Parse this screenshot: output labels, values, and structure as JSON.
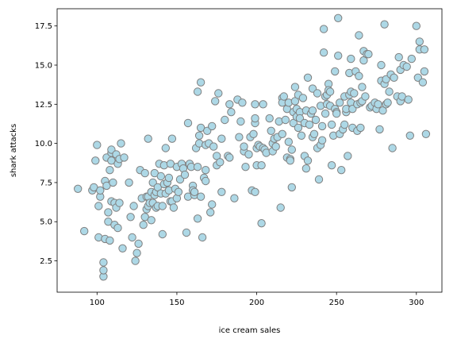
{
  "chart_data": {
    "type": "scatter",
    "title": "",
    "xlabel": "ice cream sales",
    "ylabel": "shark attacks",
    "xlim": [
      75,
      316
    ],
    "ylim": [
      0.5,
      18.6
    ],
    "xticks": [
      100,
      150,
      200,
      250,
      300
    ],
    "yticks": [
      2.5,
      5.0,
      7.5,
      10.0,
      12.5,
      15.0,
      17.5
    ],
    "xtick_labels": [
      "100",
      "150",
      "200",
      "250",
      "300"
    ],
    "ytick_labels": [
      "2.5",
      "5.0",
      "7.5",
      "10.0",
      "12.5",
      "15.0",
      "17.5"
    ],
    "grid": false,
    "marker_fill": "#add8e6",
    "marker_edge": "#808080",
    "points": [
      [
        88,
        7.1
      ],
      [
        92,
        4.4
      ],
      [
        97,
        7.0
      ],
      [
        98,
        7.2
      ],
      [
        99,
        8.9
      ],
      [
        100,
        9.9
      ],
      [
        101,
        6.0
      ],
      [
        101,
        4.0
      ],
      [
        102,
        6.6
      ],
      [
        102,
        7.0
      ],
      [
        104,
        2.4
      ],
      [
        104,
        1.5
      ],
      [
        104,
        1.9
      ],
      [
        105,
        3.9
      ],
      [
        105,
        7.6
      ],
      [
        106,
        7.3
      ],
      [
        106,
        9.1
      ],
      [
        107,
        5.0
      ],
      [
        107,
        5.6
      ],
      [
        108,
        3.8
      ],
      [
        108,
        8.3
      ],
      [
        109,
        9.4
      ],
      [
        109,
        9.6
      ],
      [
        109,
        8.9
      ],
      [
        109,
        6.3
      ],
      [
        110,
        7.5
      ],
      [
        111,
        4.8
      ],
      [
        111,
        6.2
      ],
      [
        112,
        9.3
      ],
      [
        112,
        5.9
      ],
      [
        113,
        8.7
      ],
      [
        113,
        4.6
      ],
      [
        114,
        9.0
      ],
      [
        114,
        6.2
      ],
      [
        115,
        10.0
      ],
      [
        116,
        3.3
      ],
      [
        117,
        9.1
      ],
      [
        120,
        7.5
      ],
      [
        121,
        5.3
      ],
      [
        122,
        4.0
      ],
      [
        123,
        6.0
      ],
      [
        124,
        2.5
      ],
      [
        125,
        3.0
      ],
      [
        126,
        3.6
      ],
      [
        127,
        8.3
      ],
      [
        128,
        6.5
      ],
      [
        129,
        4.8
      ],
      [
        130,
        5.3
      ],
      [
        130,
        8.1
      ],
      [
        131,
        6.6
      ],
      [
        131,
        5.8
      ],
      [
        132,
        10.3
      ],
      [
        132,
        6.6
      ],
      [
        132,
        6.0
      ],
      [
        133,
        6.2
      ],
      [
        134,
        6.9
      ],
      [
        134,
        5.1
      ],
      [
        135,
        7.5
      ],
      [
        135,
        6.2
      ],
      [
        136,
        6.7
      ],
      [
        136,
        8.1
      ],
      [
        137,
        6.9
      ],
      [
        137,
        5.9
      ],
      [
        138,
        6.0
      ],
      [
        138,
        7.2
      ],
      [
        139,
        8.7
      ],
      [
        140,
        7.9
      ],
      [
        140,
        6.8
      ],
      [
        141,
        4.2
      ],
      [
        141,
        6.0
      ],
      [
        142,
        7.4
      ],
      [
        142,
        8.6
      ],
      [
        143,
        9.7
      ],
      [
        143,
        6.8
      ],
      [
        144,
        7.5
      ],
      [
        145,
        7.8
      ],
      [
        145,
        7.0
      ],
      [
        146,
        8.7
      ],
      [
        146,
        6.3
      ],
      [
        147,
        6.3
      ],
      [
        147,
        10.3
      ],
      [
        148,
        5.9
      ],
      [
        149,
        7.1
      ],
      [
        150,
        8.5
      ],
      [
        150,
        6.5
      ],
      [
        151,
        6.9
      ],
      [
        152,
        7.7
      ],
      [
        153,
        8.7
      ],
      [
        154,
        8.4
      ],
      [
        155,
        8.0
      ],
      [
        156,
        4.3
      ],
      [
        157,
        11.3
      ],
      [
        157,
        6.6
      ],
      [
        158,
        8.7
      ],
      [
        159,
        8.5
      ],
      [
        160,
        7.3
      ],
      [
        160,
        7.0
      ],
      [
        161,
        6.7
      ],
      [
        161,
        6.9
      ],
      [
        162,
        9.7
      ],
      [
        163,
        8.5
      ],
      [
        163,
        5.2
      ],
      [
        163,
        13.3
      ],
      [
        164,
        10.0
      ],
      [
        164,
        10.5
      ],
      [
        165,
        13.9
      ],
      [
        165,
        6.6
      ],
      [
        165,
        11.0
      ],
      [
        166,
        4.0
      ],
      [
        167,
        7.8
      ],
      [
        168,
        8.3
      ],
      [
        168,
        7.6
      ],
      [
        168,
        9.9
      ],
      [
        169,
        10.8
      ],
      [
        170,
        10.0
      ],
      [
        171,
        5.6
      ],
      [
        172,
        11.1
      ],
      [
        172,
        6.1
      ],
      [
        173,
        9.8
      ],
      [
        174,
        12.7
      ],
      [
        175,
        8.6
      ],
      [
        175,
        9.2
      ],
      [
        176,
        13.2
      ],
      [
        177,
        8.8
      ],
      [
        178,
        6.9
      ],
      [
        178,
        10.3
      ],
      [
        180,
        11.5
      ],
      [
        182,
        9.2
      ],
      [
        183,
        9.1
      ],
      [
        183,
        12.5
      ],
      [
        184,
        12.0
      ],
      [
        186,
        6.5
      ],
      [
        188,
        12.8
      ],
      [
        189,
        10.4
      ],
      [
        190,
        11.4
      ],
      [
        191,
        12.6
      ],
      [
        192,
        9.5
      ],
      [
        192,
        9.8
      ],
      [
        193,
        8.5
      ],
      [
        195,
        9.3
      ],
      [
        196,
        10.4
      ],
      [
        197,
        7.0
      ],
      [
        198,
        10.6
      ],
      [
        199,
        11.3
      ],
      [
        199,
        12.5
      ],
      [
        199,
        6.9
      ],
      [
        199,
        11.6
      ],
      [
        200,
        9.7
      ],
      [
        200,
        8.6
      ],
      [
        201,
        9.9
      ],
      [
        202,
        9.8
      ],
      [
        203,
        4.9
      ],
      [
        203,
        8.6
      ],
      [
        204,
        12.5
      ],
      [
        204,
        9.7
      ],
      [
        205,
        9.6
      ],
      [
        206,
        9.4
      ],
      [
        208,
        11.6
      ],
      [
        209,
        10.8
      ],
      [
        210,
        9.5
      ],
      [
        210,
        10.0
      ],
      [
        211,
        10.3
      ],
      [
        212,
        9.8
      ],
      [
        213,
        10.4
      ],
      [
        214,
        11.4
      ],
      [
        215,
        5.9
      ],
      [
        216,
        10.6
      ],
      [
        216,
        12.9
      ],
      [
        216,
        12.6
      ],
      [
        217,
        13.0
      ],
      [
        218,
        11.5
      ],
      [
        219,
        12.2
      ],
      [
        219,
        9.1
      ],
      [
        220,
        12.6
      ],
      [
        220,
        10.1
      ],
      [
        221,
        9.0
      ],
      [
        221,
        8.9
      ],
      [
        222,
        9.6
      ],
      [
        222,
        7.2
      ],
      [
        223,
        11.3
      ],
      [
        223,
        12.0
      ],
      [
        224,
        12.7
      ],
      [
        224,
        13.6
      ],
      [
        225,
        11.7
      ],
      [
        225,
        12.2
      ],
      [
        226,
        13.1
      ],
      [
        226,
        11.0
      ],
      [
        227,
        12.0
      ],
      [
        227,
        11.6
      ],
      [
        228,
        10.5
      ],
      [
        229,
        12.9
      ],
      [
        230,
        11.3
      ],
      [
        230,
        9.2
      ],
      [
        231,
        12.1
      ],
      [
        231,
        8.4
      ],
      [
        232,
        14.2
      ],
      [
        232,
        8.9
      ],
      [
        233,
        11.2
      ],
      [
        234,
        11.9
      ],
      [
        235,
        10.4
      ],
      [
        235,
        13.5
      ],
      [
        235,
        12.1
      ],
      [
        236,
        10.6
      ],
      [
        237,
        11.5
      ],
      [
        238,
        13.2
      ],
      [
        238,
        9.7
      ],
      [
        239,
        7.7
      ],
      [
        240,
        12.4
      ],
      [
        240,
        9.9
      ],
      [
        241,
        10.2
      ],
      [
        241,
        11.1
      ],
      [
        242,
        17.3
      ],
      [
        242,
        15.8
      ],
      [
        243,
        13.0
      ],
      [
        243,
        11.9
      ],
      [
        244,
        13.1
      ],
      [
        244,
        12.5
      ],
      [
        245,
        13.8
      ],
      [
        245,
        13.4
      ],
      [
        246,
        13.3
      ],
      [
        246,
        12.4
      ],
      [
        247,
        8.6
      ],
      [
        247,
        11.2
      ],
      [
        248,
        10.5
      ],
      [
        249,
        12.2
      ],
      [
        249,
        14.6
      ],
      [
        250,
        12.0
      ],
      [
        250,
        11.9
      ],
      [
        251,
        18.0
      ],
      [
        251,
        15.6
      ],
      [
        252,
        10.6
      ],
      [
        252,
        12.6
      ],
      [
        253,
        8.3
      ],
      [
        254,
        10.9
      ],
      [
        255,
        11.2
      ],
      [
        255,
        13.0
      ],
      [
        256,
        12.0
      ],
      [
        256,
        12.2
      ],
      [
        257,
        9.2
      ],
      [
        258,
        14.5
      ],
      [
        258,
        13.1
      ],
      [
        259,
        13.3
      ],
      [
        259,
        12.6
      ],
      [
        259,
        15.4
      ],
      [
        260,
        11.0
      ],
      [
        260,
        12.2
      ],
      [
        261,
        13.2
      ],
      [
        262,
        14.6
      ],
      [
        263,
        10.8
      ],
      [
        263,
        12.5
      ],
      [
        264,
        16.9
      ],
      [
        264,
        14.3
      ],
      [
        265,
        12.6
      ],
      [
        265,
        11.0
      ],
      [
        266,
        12.7
      ],
      [
        266,
        13.6
      ],
      [
        267,
        15.3
      ],
      [
        267,
        15.9
      ],
      [
        268,
        13.0
      ],
      [
        269,
        15.7
      ],
      [
        270,
        15.7
      ],
      [
        271,
        12.3
      ],
      [
        272,
        12.4
      ],
      [
        274,
        12.6
      ],
      [
        275,
        12.2
      ],
      [
        276,
        12.5
      ],
      [
        277,
        10.9
      ],
      [
        278,
        15.0
      ],
      [
        278,
        14.0
      ],
      [
        279,
        12.1
      ],
      [
        280,
        13.8
      ],
      [
        280,
        17.6
      ],
      [
        281,
        14.1
      ],
      [
        281,
        12.5
      ],
      [
        282,
        12.6
      ],
      [
        283,
        13.3
      ],
      [
        284,
        14.4
      ],
      [
        285,
        9.7
      ],
      [
        286,
        14.2
      ],
      [
        288,
        13.0
      ],
      [
        289,
        15.5
      ],
      [
        290,
        14.7
      ],
      [
        290,
        12.7
      ],
      [
        291,
        13.0
      ],
      [
        292,
        15.0
      ],
      [
        294,
        14.9
      ],
      [
        295,
        12.8
      ],
      [
        296,
        10.5
      ],
      [
        297,
        15.4
      ],
      [
        300,
        17.5
      ],
      [
        301,
        14.2
      ],
      [
        302,
        16.0
      ],
      [
        302,
        16.5
      ],
      [
        304,
        13.9
      ],
      [
        305,
        16.0
      ],
      [
        305,
        14.6
      ],
      [
        306,
        10.6
      ]
    ]
  }
}
